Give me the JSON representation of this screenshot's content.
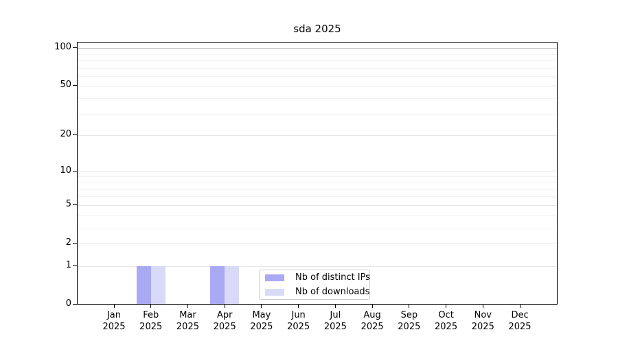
{
  "title": "sda 2025",
  "chart_data": {
    "type": "bar",
    "title": "sda 2025",
    "x_categories": [
      {
        "month": "Jan",
        "year": "2025"
      },
      {
        "month": "Feb",
        "year": "2025"
      },
      {
        "month": "Mar",
        "year": "2025"
      },
      {
        "month": "Apr",
        "year": "2025"
      },
      {
        "month": "May",
        "year": "2025"
      },
      {
        "month": "Jun",
        "year": "2025"
      },
      {
        "month": "Jul",
        "year": "2025"
      },
      {
        "month": "Aug",
        "year": "2025"
      },
      {
        "month": "Sep",
        "year": "2025"
      },
      {
        "month": "Oct",
        "year": "2025"
      },
      {
        "month": "Nov",
        "year": "2025"
      },
      {
        "month": "Dec",
        "year": "2025"
      }
    ],
    "series": [
      {
        "name": "Nb of distinct IPs",
        "color": "#a9a9f4",
        "values": [
          0,
          1,
          0,
          1,
          0,
          0,
          0,
          0,
          0,
          0,
          0,
          0
        ]
      },
      {
        "name": "Nb of downloads",
        "color": "#d9d9f8",
        "values": [
          0,
          1,
          0,
          1,
          0,
          0,
          0,
          0,
          0,
          0,
          0,
          0
        ]
      }
    ],
    "y_scale": "log1p",
    "ylim": [
      0,
      112
    ],
    "y_major_ticks": [
      0,
      1,
      2,
      5,
      10,
      20,
      50,
      100
    ],
    "y_minor_ticks": [
      3,
      4,
      6,
      7,
      8,
      9,
      30,
      40,
      60,
      70,
      80,
      90
    ],
    "y_gridline_emphasis": 100,
    "grid": "horizontal",
    "legend_position": "lower center",
    "colors": {
      "major_grid": "#e6e6e6",
      "minor_grid": "#f2f2f2",
      "emphasis_grid": "#c7c7c7",
      "axis": "#000000"
    }
  }
}
